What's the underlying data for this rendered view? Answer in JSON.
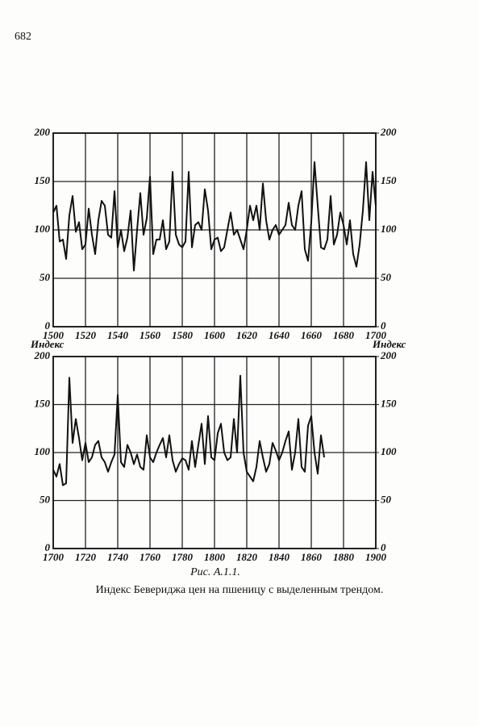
{
  "page_number": "682",
  "chart_data": [
    {
      "type": "line",
      "color": "#111111",
      "grid": true,
      "x": [
        1500,
        1502,
        1504,
        1506,
        1508,
        1510,
        1512,
        1514,
        1516,
        1518,
        1520,
        1522,
        1524,
        1526,
        1528,
        1530,
        1532,
        1534,
        1536,
        1538,
        1540,
        1542,
        1544,
        1546,
        1548,
        1550,
        1552,
        1554,
        1556,
        1558,
        1560,
        1562,
        1564,
        1566,
        1568,
        1570,
        1572,
        1574,
        1576,
        1578,
        1580,
        1582,
        1584,
        1586,
        1588,
        1590,
        1592,
        1594,
        1596,
        1598,
        1600,
        1602,
        1604,
        1606,
        1608,
        1610,
        1612,
        1614,
        1616,
        1618,
        1620,
        1622,
        1624,
        1626,
        1628,
        1630,
        1632,
        1634,
        1636,
        1638,
        1640,
        1642,
        1644,
        1646,
        1648,
        1650,
        1652,
        1654,
        1656,
        1658,
        1660,
        1662,
        1664,
        1666,
        1668,
        1670,
        1672,
        1674,
        1676,
        1678,
        1680,
        1682,
        1684,
        1686,
        1688,
        1690,
        1692,
        1694,
        1696,
        1698,
        1700
      ],
      "values": [
        118,
        125,
        88,
        90,
        70,
        115,
        135,
        98,
        108,
        80,
        85,
        122,
        95,
        75,
        110,
        130,
        125,
        95,
        92,
        140,
        82,
        100,
        78,
        92,
        120,
        58,
        100,
        138,
        95,
        112,
        155,
        75,
        90,
        90,
        110,
        80,
        88,
        160,
        95,
        85,
        82,
        88,
        160,
        82,
        105,
        108,
        100,
        142,
        120,
        80,
        90,
        92,
        78,
        82,
        100,
        118,
        95,
        100,
        90,
        80,
        100,
        125,
        110,
        125,
        100,
        148,
        110,
        90,
        100,
        105,
        95,
        100,
        105,
        128,
        105,
        100,
        125,
        140,
        80,
        68,
        108,
        170,
        125,
        82,
        80,
        90,
        135,
        85,
        95,
        118,
        105,
        85,
        110,
        75,
        62,
        85,
        120,
        170,
        110,
        160,
        125
      ],
      "xlim": [
        1500,
        1700
      ],
      "xticks": [
        1500,
        1520,
        1540,
        1560,
        1580,
        1600,
        1620,
        1640,
        1660,
        1680,
        1700
      ],
      "ylim": [
        0,
        200
      ],
      "yticks": [
        0,
        50,
        100,
        150,
        200
      ],
      "y2lim": [
        0,
        200
      ],
      "y2ticks": [
        0,
        50,
        100,
        150,
        200
      ]
    },
    {
      "type": "line",
      "color": "#111111",
      "grid": true,
      "ylabel": "Индекс",
      "y2label": "Индекс",
      "x": [
        1700,
        1702,
        1704,
        1706,
        1708,
        1710,
        1712,
        1714,
        1716,
        1718,
        1720,
        1722,
        1724,
        1726,
        1728,
        1730,
        1732,
        1734,
        1736,
        1738,
        1740,
        1742,
        1744,
        1746,
        1748,
        1750,
        1752,
        1754,
        1756,
        1758,
        1760,
        1762,
        1764,
        1766,
        1768,
        1770,
        1772,
        1774,
        1776,
        1778,
        1780,
        1782,
        1784,
        1786,
        1788,
        1790,
        1792,
        1794,
        1796,
        1798,
        1800,
        1802,
        1804,
        1806,
        1808,
        1810,
        1812,
        1814,
        1816,
        1818,
        1820,
        1822,
        1824,
        1826,
        1828,
        1830,
        1832,
        1834,
        1836,
        1838,
        1840,
        1842,
        1844,
        1846,
        1848,
        1850,
        1852,
        1854,
        1856,
        1858,
        1860,
        1862,
        1864,
        1866,
        1868
      ],
      "values": [
        82,
        75,
        88,
        66,
        68,
        178,
        110,
        135,
        115,
        92,
        110,
        90,
        95,
        108,
        112,
        95,
        90,
        80,
        90,
        98,
        160,
        90,
        85,
        108,
        100,
        88,
        98,
        85,
        82,
        118,
        95,
        90,
        100,
        108,
        115,
        95,
        118,
        92,
        80,
        88,
        94,
        92,
        82,
        112,
        85,
        108,
        130,
        88,
        138,
        95,
        92,
        120,
        130,
        100,
        92,
        95,
        135,
        100,
        180,
        100,
        80,
        75,
        70,
        85,
        112,
        95,
        80,
        88,
        110,
        102,
        92,
        100,
        112,
        122,
        82,
        100,
        135,
        85,
        80,
        128,
        138,
        100,
        78,
        118,
        95
      ],
      "xlim": [
        1700,
        1900
      ],
      "xticks": [
        1700,
        1720,
        1740,
        1760,
        1780,
        1800,
        1820,
        1840,
        1860,
        1880,
        1900
      ],
      "ylim": [
        0,
        200
      ],
      "yticks": [
        0,
        50,
        100,
        150,
        200
      ],
      "y2lim": [
        0,
        200
      ],
      "y2ticks": [
        0,
        50,
        100,
        150,
        200
      ]
    }
  ],
  "caption": {
    "label": "Рис. А.1.1.",
    "text": "Индекс Бевериджа цен на пшеницу с выделенным трендом."
  }
}
